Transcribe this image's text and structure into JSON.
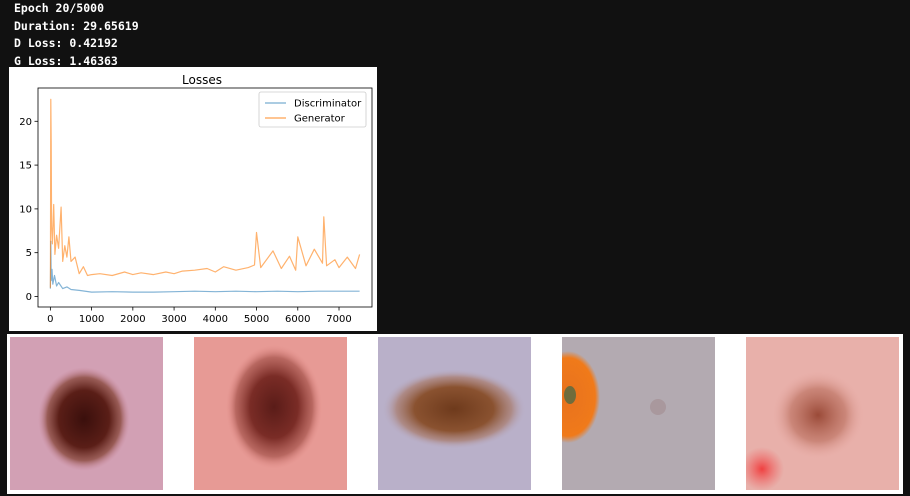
{
  "log": {
    "epoch": "Epoch 20/5000",
    "duration": "Duration: 29.65619",
    "d_loss": "D Loss: 0.42192",
    "g_loss": "G Loss: 1.46363"
  },
  "chart_data": {
    "type": "line",
    "title": "Losses",
    "xlabel": "",
    "ylabel": "",
    "xlim": [
      -300,
      7800
    ],
    "ylim": [
      -1.2,
      23.8
    ],
    "x_ticks": [
      0,
      1000,
      2000,
      3000,
      4000,
      5000,
      6000,
      7000
    ],
    "y_ticks": [
      0,
      5,
      10,
      15,
      20
    ],
    "legend_position": "top-right",
    "grid": false,
    "series": [
      {
        "name": "Discriminator",
        "color": "#1f77b4",
        "x": [
          0,
          10,
          20,
          40,
          60,
          100,
          150,
          200,
          300,
          400,
          500,
          700,
          1000,
          1500,
          2000,
          2500,
          3000,
          3500,
          4000,
          4500,
          5000,
          5500,
          6000,
          6500,
          7000,
          7500
        ],
        "y": [
          0.9,
          6.3,
          1.8,
          3.1,
          1.4,
          2.4,
          1.2,
          1.6,
          0.9,
          1.1,
          0.8,
          0.7,
          0.5,
          0.55,
          0.5,
          0.5,
          0.55,
          0.6,
          0.55,
          0.6,
          0.55,
          0.6,
          0.55,
          0.6,
          0.6,
          0.6
        ]
      },
      {
        "name": "Generator",
        "color": "#ff7f0e",
        "x": [
          0,
          10,
          20,
          30,
          50,
          80,
          110,
          150,
          200,
          260,
          300,
          350,
          400,
          450,
          500,
          600,
          700,
          800,
          900,
          1000,
          1200,
          1500,
          1800,
          2000,
          2200,
          2500,
          2800,
          3000,
          3200,
          3500,
          3800,
          4000,
          4200,
          4500,
          4800,
          4950,
          5000,
          5100,
          5400,
          5600,
          5800,
          5950,
          6000,
          6200,
          6400,
          6600,
          6630,
          6700,
          6900,
          7000,
          7200,
          7400,
          7500
        ],
        "y": [
          1.0,
          22.5,
          17.5,
          8.0,
          6.0,
          10.5,
          4.8,
          7.0,
          5.5,
          10.2,
          4.0,
          5.8,
          4.5,
          6.8,
          4.0,
          4.5,
          2.6,
          3.4,
          2.4,
          2.5,
          2.6,
          2.4,
          2.8,
          2.5,
          2.7,
          2.5,
          2.8,
          2.6,
          2.9,
          3.0,
          3.2,
          2.8,
          3.4,
          3.0,
          3.3,
          3.6,
          7.3,
          3.3,
          5.2,
          3.2,
          4.6,
          3.0,
          6.8,
          3.5,
          5.4,
          3.8,
          9.1,
          3.5,
          4.2,
          3.3,
          4.5,
          3.2,
          4.8
        ]
      }
    ]
  },
  "samples": [
    {
      "label": "generated-sample-1"
    },
    {
      "label": "generated-sample-2"
    },
    {
      "label": "generated-sample-3"
    },
    {
      "label": "generated-sample-4"
    },
    {
      "label": "generated-sample-5"
    }
  ]
}
